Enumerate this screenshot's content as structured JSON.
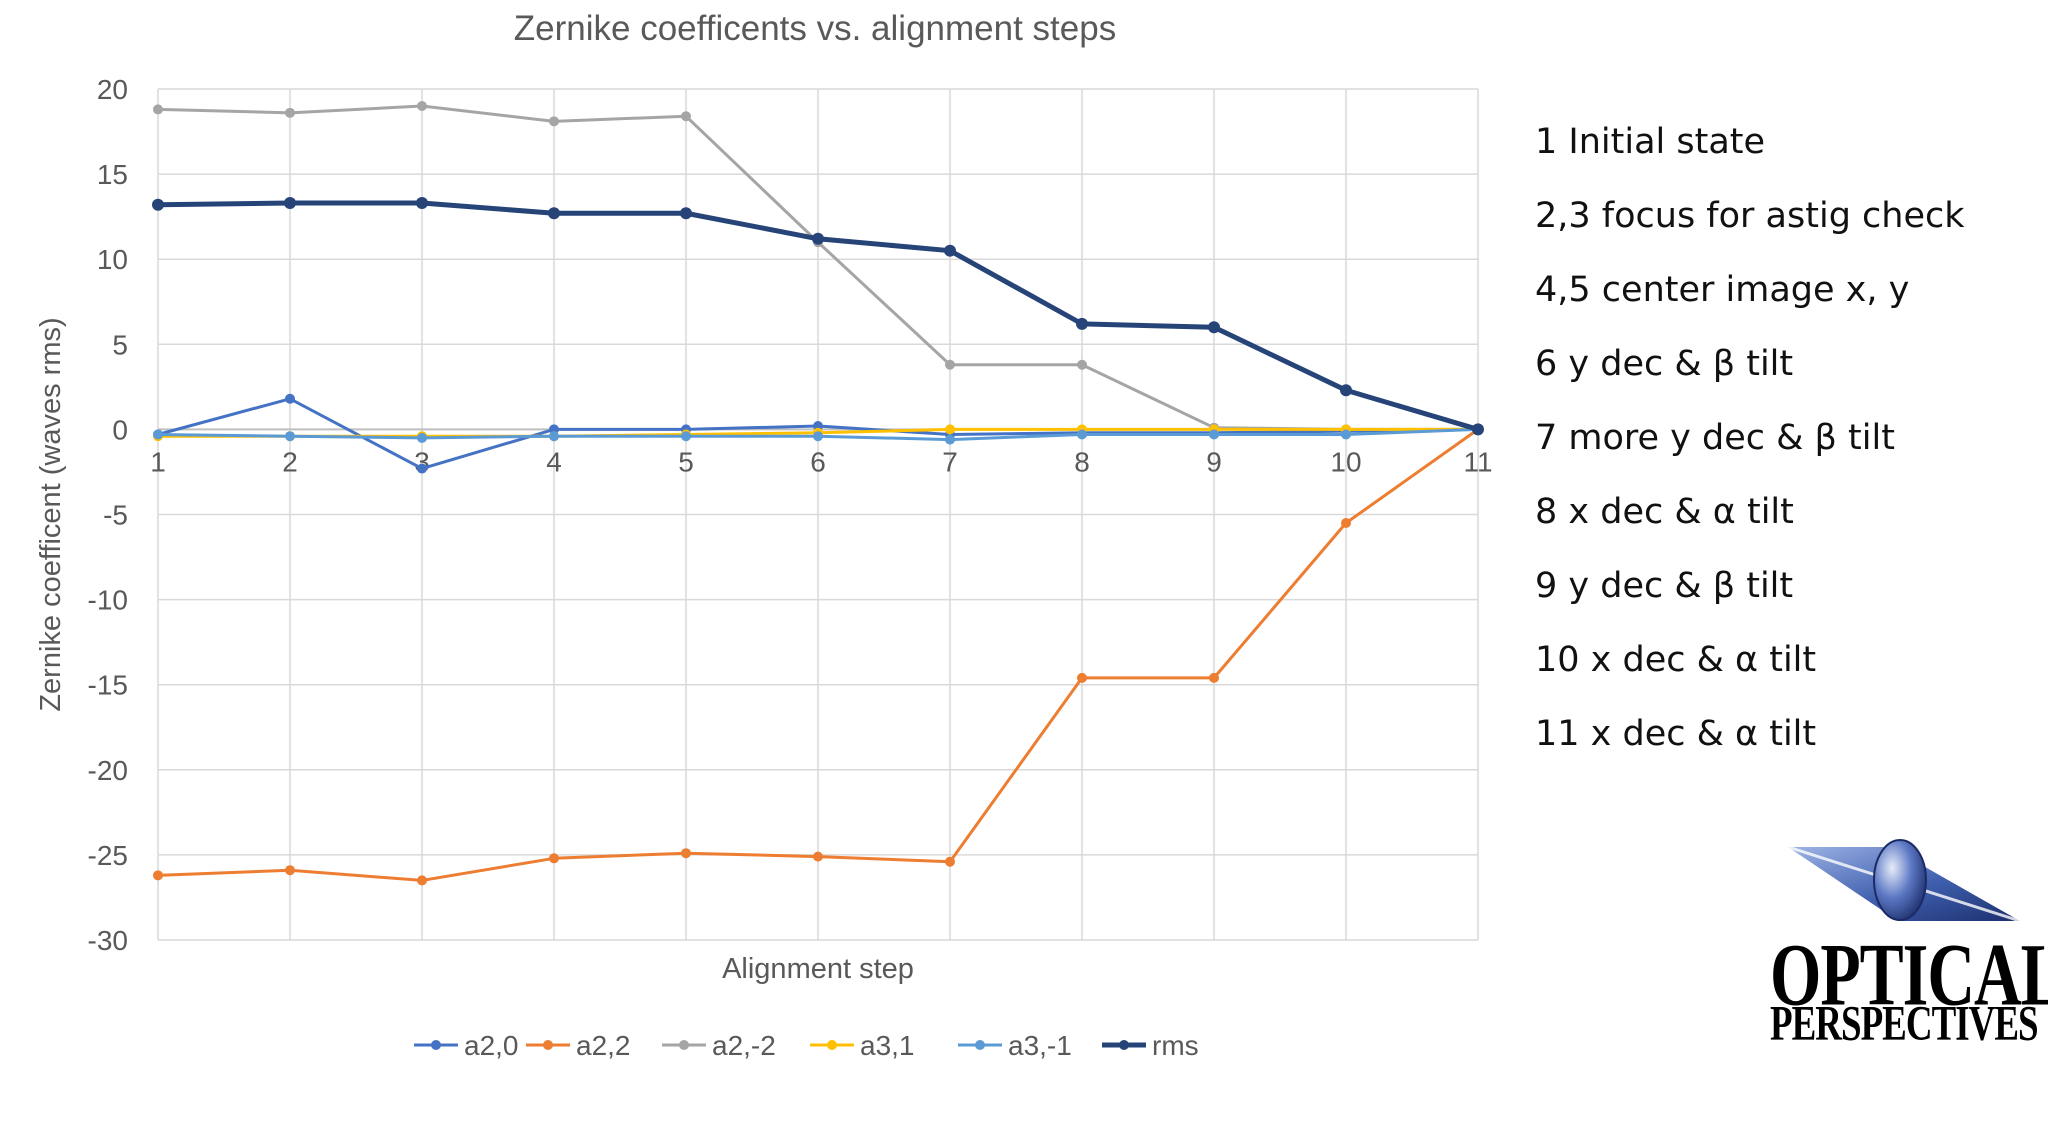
{
  "chart_data": {
    "type": "line",
    "title": "Zernike coefficents vs. alignment steps",
    "xlabel": "Alignment step",
    "ylabel": "Zernike coefficent (waves rms)",
    "x": [
      1,
      2,
      3,
      4,
      5,
      6,
      7,
      8,
      9,
      10,
      11
    ],
    "ylim": [
      -30,
      20
    ],
    "yticks": [
      20,
      15,
      10,
      5,
      0,
      -5,
      -10,
      -15,
      -20,
      -25,
      -30
    ],
    "grid": true,
    "legend": "bottom",
    "series": [
      {
        "name": "a2,0",
        "color": "#4472C4",
        "values": [
          -0.3,
          1.8,
          -2.3,
          0.0,
          0.0,
          0.2,
          -0.3,
          -0.2,
          -0.2,
          -0.1,
          0.0
        ]
      },
      {
        "name": "a2,2",
        "color": "#ED7D31",
        "values": [
          -26.2,
          -25.9,
          -26.5,
          -25.2,
          -24.9,
          -25.1,
          -25.4,
          -14.6,
          -14.6,
          -5.5,
          0.0
        ]
      },
      {
        "name": "a2,-2",
        "color": "#A5A5A5",
        "values": [
          18.8,
          18.6,
          19.0,
          18.1,
          18.4,
          11.0,
          3.8,
          3.8,
          0.1,
          0.0,
          0.0
        ]
      },
      {
        "name": "a3,1",
        "color": "#FFC000",
        "values": [
          -0.4,
          -0.4,
          -0.4,
          -0.4,
          -0.3,
          -0.2,
          0.0,
          0.0,
          0.0,
          0.0,
          0.0
        ]
      },
      {
        "name": "a3,-1",
        "color": "#5B9BD5",
        "values": [
          -0.3,
          -0.4,
          -0.5,
          -0.4,
          -0.4,
          -0.4,
          -0.6,
          -0.3,
          -0.3,
          -0.3,
          0.0
        ]
      },
      {
        "name": "rms",
        "color": "#264478",
        "values": [
          13.2,
          13.3,
          13.3,
          12.7,
          12.7,
          11.2,
          10.5,
          6.2,
          6.0,
          2.3,
          0.0
        ]
      }
    ]
  },
  "notes": [
    "1 Initial state",
    "2,3 focus for astig check",
    "4,5 center image x, y",
    "6 y dec & β tilt",
    "7 more y dec & β tilt",
    "8 x dec & α tilt",
    "9 y dec & β tilt",
    "10 x dec & α tilt",
    "11 x dec & α tilt"
  ],
  "logo": {
    "line1": "OPTICAL",
    "line2": "PERSPECTIVES"
  }
}
